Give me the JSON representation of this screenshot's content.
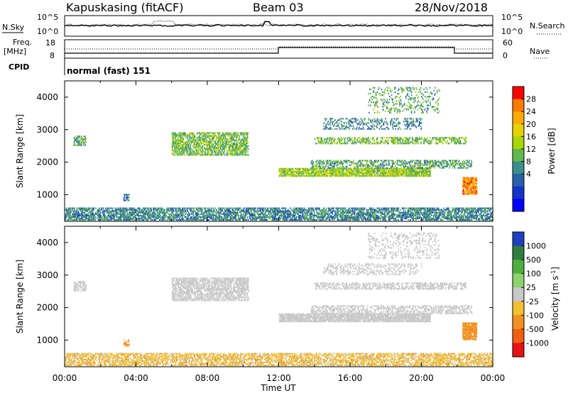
{
  "header": {
    "station": "Kapuskasing (fitACF)",
    "beam": "Beam 03",
    "date": "28/Nov/2018"
  },
  "info_panels": {
    "nsky_label": "N.Sky",
    "nsky_ticks": [
      "10^5",
      "10^0"
    ],
    "nsearch_label": "N.Search",
    "nsearch_ticks": [
      "10^5",
      "10^0"
    ],
    "freq_label": "Freq.",
    "freq_unit": "[MHz]",
    "freq_ticks": [
      "18",
      "8"
    ],
    "nave_label": "Nave",
    "nave_ticks": [
      "60",
      "0"
    ],
    "cpid_label": "CPID",
    "cpid_text": "normal (fast) 151"
  },
  "chart_data": [
    {
      "type": "heatmap",
      "panel": "power",
      "ylabel": "Slant Range [km]",
      "ylim": [
        180,
        4500
      ],
      "yticks": [
        "1000",
        "2000",
        "3000",
        "4000"
      ],
      "xlim": [
        0,
        24
      ],
      "colorbar_label": "Power [dB]",
      "colorbar_ticks": [
        "28",
        "24",
        "20",
        "16",
        "12",
        "8",
        "4"
      ],
      "colorbar_colors": [
        "#ff0000",
        "#ff7a00",
        "#ffaa00",
        "#e6d200",
        "#a8d800",
        "#5fb94f",
        "#3a8f8a",
        "#2a5faa",
        "#1436c8",
        "#0000ff"
      ],
      "echo_regions": [
        {
          "t0": 0.0,
          "t1": 24.0,
          "r0": 200,
          "r1": 600,
          "value": 10,
          "density": 0.55
        },
        {
          "t0": 0.5,
          "t1": 1.2,
          "r0": 2500,
          "r1": 2800,
          "value": 12,
          "density": 0.5
        },
        {
          "t0": 3.3,
          "t1": 3.6,
          "r0": 800,
          "r1": 1000,
          "value": 10,
          "density": 0.6
        },
        {
          "t0": 6.0,
          "t1": 10.3,
          "r0": 2200,
          "r1": 2900,
          "value": 14,
          "density": 0.55
        },
        {
          "t0": 12.0,
          "t1": 20.5,
          "r0": 1550,
          "r1": 1800,
          "value": 16,
          "density": 0.75
        },
        {
          "t0": 13.8,
          "t1": 22.8,
          "r0": 1800,
          "r1": 2050,
          "value": 12,
          "density": 0.4
        },
        {
          "t0": 14.0,
          "t1": 22.5,
          "r0": 2550,
          "r1": 2750,
          "value": 14,
          "density": 0.4
        },
        {
          "t0": 14.5,
          "t1": 20.0,
          "r0": 3000,
          "r1": 3350,
          "value": 10,
          "density": 0.25
        },
        {
          "t0": 17.0,
          "t1": 21.0,
          "r0": 3500,
          "r1": 4300,
          "value": 12,
          "density": 0.15
        },
        {
          "t0": 22.3,
          "t1": 23.1,
          "r0": 1000,
          "r1": 1500,
          "value": 24,
          "density": 0.75
        }
      ]
    },
    {
      "type": "heatmap",
      "panel": "velocity",
      "ylabel": "Slant Range [km]",
      "ylim": [
        180,
        4500
      ],
      "yticks": [
        "1000",
        "2000",
        "3000",
        "4000"
      ],
      "xlim": [
        0,
        24
      ],
      "xticks": [
        "00:00",
        "04:00",
        "08:00",
        "12:00",
        "16:00",
        "20:00",
        "00:00"
      ],
      "xlabel": "Time UT",
      "colorbar_label": "Velocity [m s",
      "colorbar_label_sup": "-1",
      "colorbar_label_end": "]",
      "colorbar_ticks": [
        "1000",
        "500",
        "100",
        "25",
        "-25",
        "-100",
        "-500",
        "-1000"
      ],
      "colorbar_colors": [
        "#1f3fbf",
        "#2f7d3f",
        "#4fb03f",
        "#8fd06f",
        "#c8c8c8",
        "#f0c030",
        "#f09020",
        "#f06010",
        "#e81010"
      ],
      "echo_regions": [
        {
          "t0": 0.0,
          "t1": 24.0,
          "r0": 200,
          "r1": 600,
          "value": -60,
          "density": 0.5
        },
        {
          "t0": 0.5,
          "t1": 1.2,
          "r0": 2500,
          "r1": 2800,
          "value": 0,
          "density": 0.5
        },
        {
          "t0": 3.3,
          "t1": 3.6,
          "r0": 800,
          "r1": 1000,
          "value": -150,
          "density": 0.6
        },
        {
          "t0": 6.0,
          "t1": 10.3,
          "r0": 2200,
          "r1": 2900,
          "value": 0,
          "density": 0.55
        },
        {
          "t0": 12.0,
          "t1": 20.5,
          "r0": 1550,
          "r1": 1800,
          "value": 0,
          "density": 0.75
        },
        {
          "t0": 13.8,
          "t1": 22.8,
          "r0": 1800,
          "r1": 2050,
          "value": 0,
          "density": 0.4
        },
        {
          "t0": 14.0,
          "t1": 22.5,
          "r0": 2550,
          "r1": 2750,
          "value": 0,
          "density": 0.4
        },
        {
          "t0": 14.5,
          "t1": 20.0,
          "r0": 3000,
          "r1": 3350,
          "value": 0,
          "density": 0.25
        },
        {
          "t0": 17.0,
          "t1": 21.0,
          "r0": 3500,
          "r1": 4300,
          "value": 0,
          "density": 0.15
        },
        {
          "t0": 22.3,
          "t1": 23.1,
          "r0": 1000,
          "r1": 1500,
          "value": -300,
          "density": 0.75
        }
      ]
    }
  ]
}
